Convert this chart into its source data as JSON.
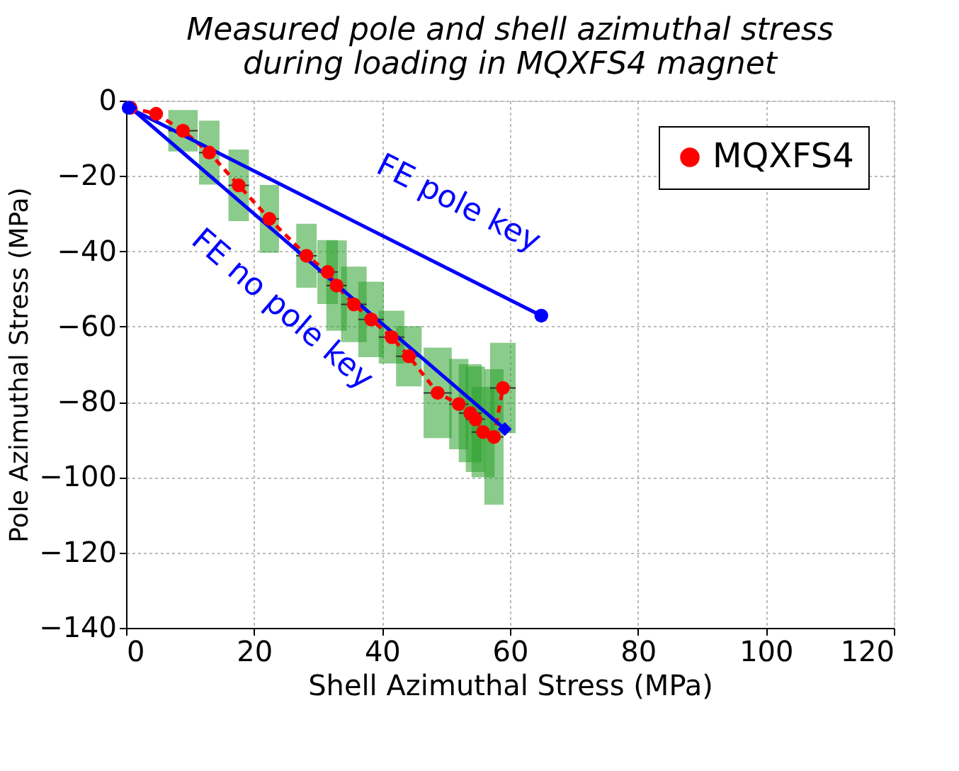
{
  "chart_data": {
    "type": "line",
    "title": "Measured pole and shell azimuthal stress\nduring loading in MQXFS4 magnet",
    "xlabel": "Shell Azimuthal Stress (MPa)",
    "ylabel": "Pole Azimuthal Stress (MPa)",
    "xlim": [
      0,
      120
    ],
    "xticks": [
      0,
      20,
      40,
      60,
      80,
      100,
      120
    ],
    "ylim": [
      -140,
      0
    ],
    "yticks": [
      -140,
      -120,
      -100,
      -80,
      -60,
      -40,
      -20,
      0
    ],
    "grid": true,
    "legend": "top right",
    "annotations": [
      {
        "text": "FE pole key",
        "x": 43.1,
        "y": -38.4
      },
      {
        "text": "FE no pole key",
        "x": 35.4,
        "y": -52.5
      }
    ],
    "series": [
      {
        "name": "MQXFS4",
        "color": "#ff0000",
        "marker": "circle",
        "line_style": "dashed",
        "x": [
          0.7,
          4.7,
          8.9,
          13,
          17.6,
          22.4,
          28.2,
          31.5,
          32.9,
          35.6,
          38.3,
          41.5,
          44.2,
          48.7,
          52,
          53.8,
          54.6,
          55.8,
          57.5,
          58.9
        ],
        "values": [
          -1.9,
          -3.5,
          -8,
          -13.8,
          -22.5,
          -31.4,
          -41.2,
          -45.5,
          -49.1,
          -54.1,
          -58.1,
          -62.8,
          -67.9,
          -77.6,
          -80.6,
          -83,
          -84.6,
          -88,
          -89.3,
          -76.3
        ],
        "errors": [
          null,
          null,
          5.5,
          8.5,
          9.5,
          9,
          8.5,
          8.5,
          12,
          10,
          10,
          7,
          8,
          12,
          12,
          13,
          14,
          12,
          18,
          12
        ],
        "xerrors": [
          null,
          null,
          2.3,
          1.6,
          1.6,
          1.5,
          1.6,
          1.6,
          1.6,
          2,
          2,
          2,
          2,
          2.2,
          1.5,
          1.8,
          1.5,
          1.8,
          1.5,
          2
        ]
      },
      {
        "color": "#0000ff",
        "marker": "circle",
        "line_style": "solid",
        "x": [
          0.4,
          64.9
        ],
        "values": [
          -1.9,
          -57.1
        ]
      },
      {
        "color": "#0000ff",
        "marker": "diamond",
        "line_style": "solid",
        "x": [
          0.7,
          59.2
        ],
        "values": [
          -1.9,
          -87.2
        ]
      }
    ]
  }
}
